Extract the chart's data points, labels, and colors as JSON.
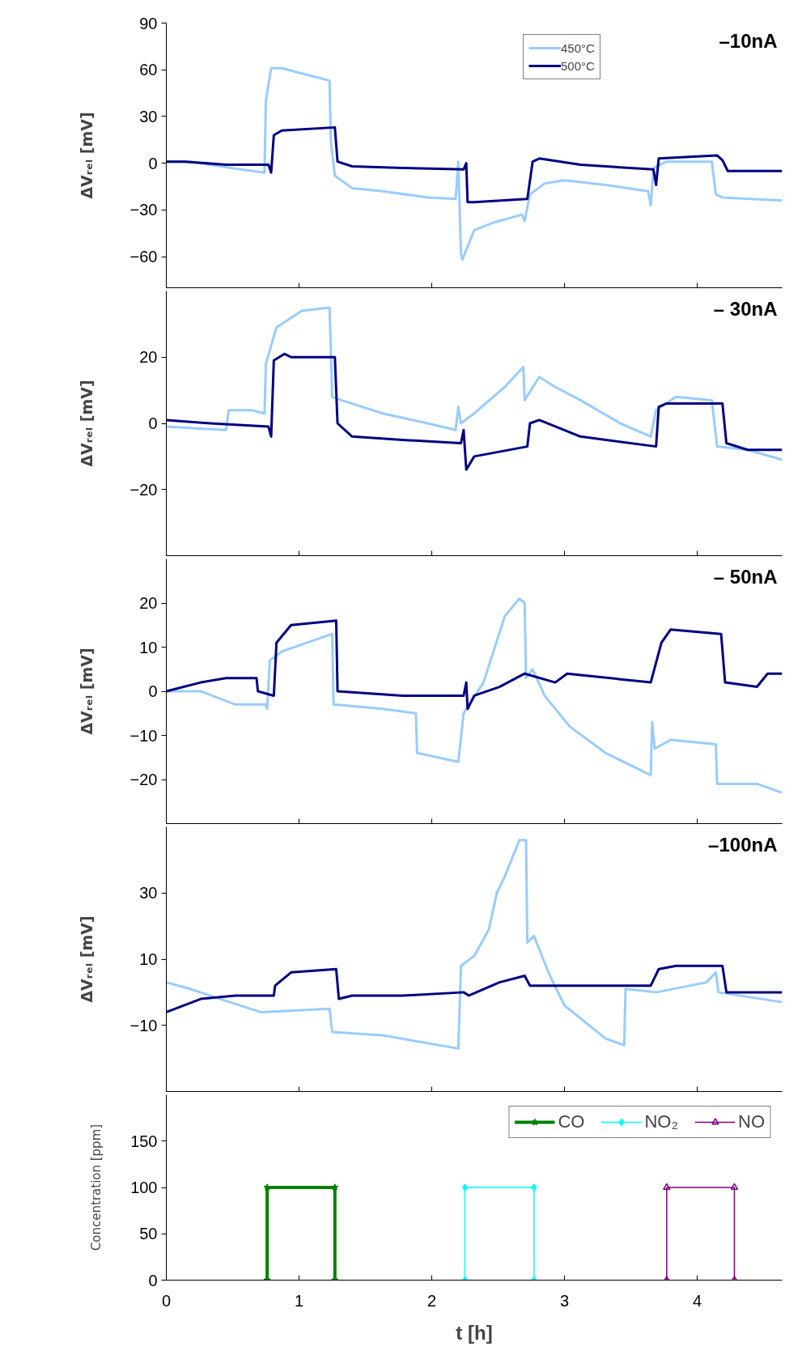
{
  "chart_data": [
    {
      "type": "line",
      "title": "–10nA",
      "ylabel": "ΔVᵣₑₗ [mV]",
      "xlim": [
        0,
        4.64
      ],
      "xticks": [
        0,
        1,
        2,
        3,
        4
      ],
      "ylim": [
        -80,
        90
      ],
      "yticks": [
        -60,
        -30,
        0,
        30,
        60,
        90
      ],
      "tick_labels": "y",
      "legend": "top right",
      "series": [
        {
          "name": "450°C",
          "color": "#99ccff",
          "x": [
            0,
            0.18,
            0.48,
            0.74,
            0.75,
            0.79,
            0.87,
            1.23,
            1.24,
            1.27,
            1.4,
            1.63,
            1.97,
            2.18,
            2.2,
            2.22,
            2.23,
            2.32,
            2.47,
            2.68,
            2.7,
            2.74,
            2.85,
            3.0,
            3.31,
            3.63,
            3.65,
            3.67,
            3.77,
            4.11,
            4.14,
            4.19,
            4.64
          ],
          "values": [
            1,
            1,
            -3,
            -6,
            40,
            61,
            61,
            53,
            14,
            -8,
            -16,
            -18,
            -22,
            -23,
            1,
            -58,
            -62,
            -43,
            -38,
            -33,
            -37,
            -20,
            -13,
            -11,
            -14,
            -18,
            -27,
            -3,
            1,
            1,
            -20,
            -22,
            -24
          ]
        },
        {
          "name": "500°C",
          "color": "#000080",
          "x": [
            0,
            0.14,
            0.45,
            0.77,
            0.79,
            0.81,
            0.87,
            1.27,
            1.29,
            1.4,
            1.78,
            2.24,
            2.26,
            2.27,
            2.32,
            2.72,
            2.76,
            2.81,
            3.12,
            3.67,
            3.69,
            3.71,
            4.15,
            4.19,
            4.23,
            4.64
          ],
          "values": [
            1,
            1,
            -1,
            -1,
            -6,
            18,
            21,
            23,
            1,
            -2,
            -3,
            -4,
            0,
            -25,
            -25,
            -23,
            1,
            3,
            -1,
            -4,
            -14,
            3,
            5,
            2,
            -5,
            -5
          ]
        }
      ]
    },
    {
      "type": "line",
      "title": "– 30nA",
      "ylabel": "ΔVᵣₑₗ [mV]",
      "xlim": [
        0,
        4.64
      ],
      "xticks": [
        0,
        1,
        2,
        3,
        4
      ],
      "ylim": [
        -40,
        40
      ],
      "yticks": [
        -20,
        0,
        20
      ],
      "tick_labels": "y",
      "series": [
        {
          "color": "#99ccff",
          "x": [
            0,
            0.45,
            0.47,
            0.64,
            0.74,
            0.75,
            0.83,
            1.02,
            1.23,
            1.25,
            1.32,
            1.63,
            1.97,
            2.18,
            2.2,
            2.22,
            2.32,
            2.55,
            2.69,
            2.7,
            2.81,
            2.93,
            3.12,
            3.42,
            3.65,
            3.69,
            3.84,
            4.11,
            4.15,
            4.38,
            4.64
          ],
          "values": [
            -1,
            -2,
            4,
            4,
            3,
            18,
            29,
            34,
            35,
            8,
            7,
            3,
            0,
            -2,
            5,
            0,
            3,
            11,
            17,
            7,
            14,
            11,
            7,
            0,
            -4,
            4,
            8,
            7,
            -7,
            -8,
            -11
          ]
        },
        {
          "color": "#000080",
          "x": [
            0,
            0.33,
            0.77,
            0.79,
            0.81,
            0.89,
            0.94,
            1.27,
            1.29,
            1.4,
            1.78,
            2.22,
            2.24,
            2.26,
            2.32,
            2.72,
            2.74,
            2.81,
            3.12,
            3.69,
            3.71,
            3.77,
            4.19,
            4.22,
            4.38,
            4.64
          ],
          "values": [
            1,
            0,
            -1,
            -4,
            19,
            21,
            20,
            20,
            0,
            -4,
            -5,
            -6,
            -2,
            -14,
            -10,
            -7,
            0,
            1,
            -4,
            -7,
            5,
            6,
            6,
            -6,
            -8,
            -8
          ]
        }
      ]
    },
    {
      "type": "line",
      "title": "– 50nA",
      "ylabel": "ΔVᵣₑₗ [mV]",
      "xlim": [
        0,
        4.64
      ],
      "xticks": [
        0,
        1,
        2,
        3,
        4
      ],
      "ylim": [
        -30,
        30
      ],
      "yticks": [
        -20,
        -10,
        0,
        10,
        20
      ],
      "tick_labels": "y",
      "series": [
        {
          "color": "#99ccff",
          "x": [
            0,
            0.26,
            0.52,
            0.75,
            0.76,
            0.78,
            0.87,
            1.25,
            1.26,
            1.63,
            1.88,
            1.89,
            2.2,
            2.24,
            2.39,
            2.55,
            2.66,
            2.7,
            2.71,
            2.76,
            2.85,
            3.04,
            3.31,
            3.65,
            3.66,
            3.68,
            3.8,
            4.14,
            4.15,
            4.45,
            4.64
          ],
          "values": [
            0,
            0,
            -3,
            -3,
            -4,
            7,
            9,
            13,
            -3,
            -4,
            -5,
            -14,
            -16,
            -5,
            2,
            17,
            21,
            20,
            3,
            5,
            -1,
            -8,
            -14,
            -19,
            -7,
            -13,
            -11,
            -12,
            -21,
            -21,
            -23
          ]
        },
        {
          "color": "#000080",
          "x": [
            0,
            0.26,
            0.45,
            0.68,
            0.69,
            0.81,
            0.83,
            0.94,
            1.28,
            1.29,
            1.78,
            2.24,
            2.26,
            2.27,
            2.32,
            2.51,
            2.7,
            2.93,
            3.02,
            3.65,
            3.73,
            3.8,
            4.18,
            4.21,
            4.45,
            4.53,
            4.64
          ],
          "values": [
            0,
            2,
            3,
            3,
            0,
            -1,
            11,
            15,
            16,
            0,
            -1,
            -1,
            2,
            -4,
            -1,
            1,
            4,
            2,
            4,
            2,
            11,
            14,
            13,
            2,
            1,
            4,
            4
          ]
        }
      ]
    },
    {
      "type": "line",
      "title": "–100nA",
      "ylabel": "ΔVᵣₑₗ [mV]",
      "xlim": [
        0,
        4.64
      ],
      "xticks": [
        0,
        1,
        2,
        3,
        4
      ],
      "ylim": [
        -30,
        50
      ],
      "yticks": [
        -10,
        10,
        30
      ],
      "tick_labels": "y",
      "series": [
        {
          "color": "#99ccff",
          "x": [
            0,
            0.18,
            0.48,
            0.71,
            1.23,
            1.25,
            1.63,
            2.2,
            2.22,
            2.32,
            2.43,
            2.49,
            2.55,
            2.66,
            2.71,
            2.72,
            2.77,
            2.89,
            3.0,
            3.31,
            3.45,
            3.46,
            3.69,
            4.07,
            4.14,
            4.16,
            4.64
          ],
          "values": [
            3,
            1,
            -3,
            -6,
            -5,
            -12,
            -13,
            -17,
            8,
            11,
            19,
            30,
            35,
            46,
            46,
            15,
            17,
            5,
            -4,
            -14,
            -16,
            1,
            0,
            3,
            6,
            0,
            -3
          ]
        },
        {
          "color": "#000080",
          "x": [
            0,
            0.26,
            0.52,
            0.81,
            0.82,
            0.94,
            1.28,
            1.3,
            1.4,
            1.78,
            2.24,
            2.28,
            2.51,
            2.7,
            2.74,
            2.93,
            3.65,
            3.71,
            3.84,
            4.19,
            4.22,
            4.64
          ],
          "values": [
            -6,
            -2,
            -1,
            -1,
            2,
            6,
            7,
            -2,
            -1,
            -1,
            0,
            -1,
            3,
            5,
            2,
            2,
            2,
            7,
            8,
            8,
            0,
            0
          ]
        }
      ]
    },
    {
      "type": "line",
      "xlabel": "t [h]",
      "ylabel": "Concentration [ppm]",
      "xlim": [
        0,
        4.64
      ],
      "xticks": [
        0,
        1,
        2,
        3,
        4
      ],
      "ylim": [
        0,
        200
      ],
      "yticks": [
        0,
        50,
        100,
        150
      ],
      "legend": "top right",
      "series": [
        {
          "name": "CO",
          "color": "#008000",
          "marker": "star",
          "x": [
            0.76,
            0.76,
            1.27,
            1.27
          ],
          "values": [
            0,
            100,
            100,
            0
          ]
        },
        {
          "name": "NO₂",
          "color": "#00ffff",
          "marker": "diamond",
          "x": [
            2.25,
            2.25,
            2.77,
            2.77
          ],
          "values": [
            0,
            100,
            100,
            0
          ]
        },
        {
          "name": "NO",
          "color": "#800080",
          "marker": "triangle",
          "x": [
            3.77,
            3.77,
            4.28,
            4.28
          ],
          "values": [
            0,
            100,
            100,
            0
          ]
        }
      ]
    }
  ]
}
